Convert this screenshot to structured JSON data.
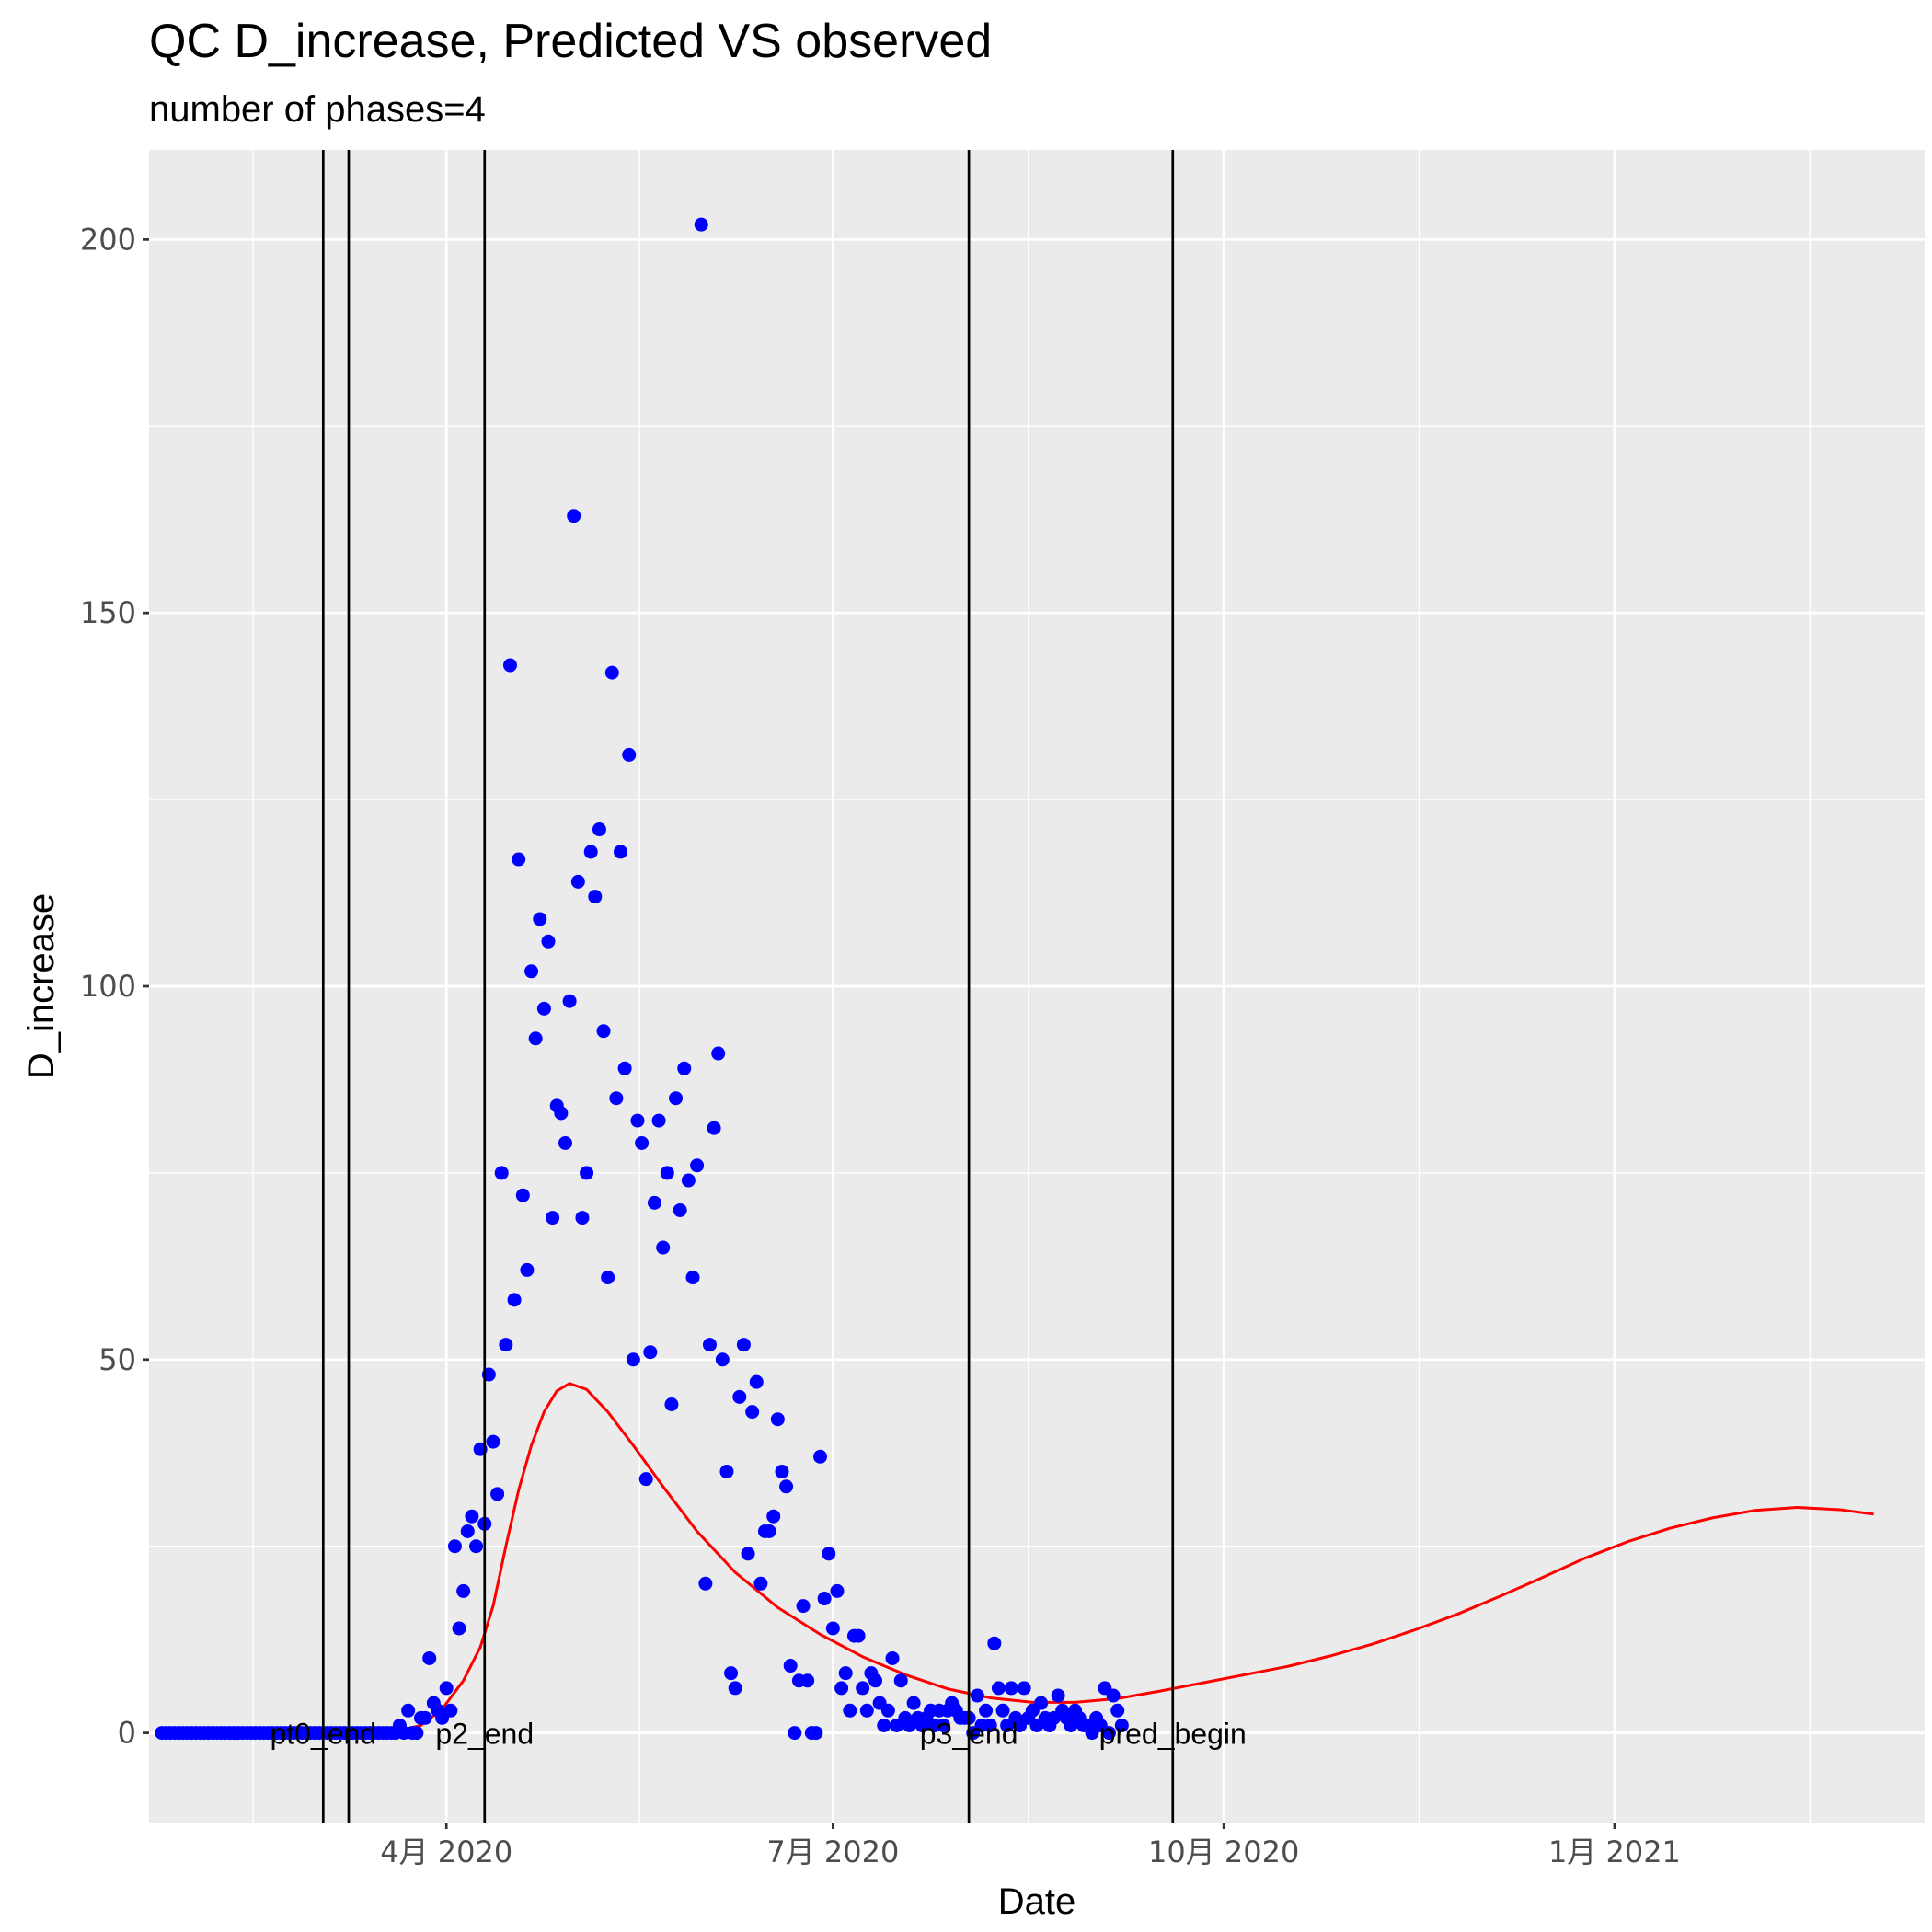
{
  "chart_data": {
    "type": "scatter",
    "title": "QC D_increase, Predicted VS observed",
    "subtitle": "number of phases=4",
    "xlabel": "Date",
    "ylabel": "D_increase",
    "x_type": "date",
    "xlim": [
      "2020-01-22",
      "2021-03-15"
    ],
    "ylim": [
      -12,
      212
    ],
    "x_ticks": [
      {
        "date": "2020-04-01",
        "label": "4月 2020"
      },
      {
        "date": "2020-07-01",
        "label": "7月 2020"
      },
      {
        "date": "2020-10-01",
        "label": "10月 2020"
      },
      {
        "date": "2021-01-01",
        "label": "1月 2021"
      }
    ],
    "y_ticks": [
      0,
      50,
      100,
      150,
      200
    ],
    "grid": true,
    "colors": {
      "panel": "#ebebeb",
      "grid": "#ffffff",
      "observed": "#0000ff",
      "predicted": "#ff0000",
      "vline": "#000000"
    },
    "vlines": [
      {
        "date": "2020-03-03",
        "label": "pt0_end"
      },
      {
        "date": "2020-03-09",
        "label": ""
      },
      {
        "date": "2020-04-10",
        "label": "p2_end"
      },
      {
        "date": "2020-08-02",
        "label": "p3_end"
      },
      {
        "date": "2020-09-19",
        "label": "pred_begin"
      }
    ],
    "series": [
      {
        "kind": "points",
        "x_start": "2020-01-25",
        "y": [
          0,
          0,
          0,
          0,
          0,
          0,
          0,
          0,
          0,
          0,
          0,
          0,
          0,
          0,
          0,
          0,
          0,
          0,
          0,
          0,
          0,
          0,
          0,
          0,
          0,
          0,
          0,
          0,
          0,
          0,
          0,
          0,
          0,
          0,
          0,
          0,
          0,
          0,
          0,
          0,
          0,
          0,
          0,
          0,
          0,
          0,
          0,
          0,
          0,
          0,
          0,
          0,
          0,
          0,
          0,
          0,
          1,
          0,
          3,
          0,
          0,
          2,
          2,
          10,
          4,
          3,
          2,
          6,
          3,
          25,
          14,
          19,
          27,
          29,
          25,
          38,
          28,
          48,
          39,
          32,
          75,
          52,
          143,
          58,
          117,
          72,
          62,
          102,
          93,
          109,
          97,
          106,
          69,
          84,
          83,
          79,
          98,
          163,
          114,
          69,
          75,
          118,
          112,
          121,
          94,
          61,
          142,
          85,
          118,
          89,
          131,
          50,
          82,
          79,
          34,
          51,
          71,
          82,
          65,
          75,
          44,
          85,
          70,
          89,
          74,
          61,
          76,
          202,
          20,
          52,
          81,
          91,
          50,
          35,
          8,
          6,
          45,
          52,
          24,
          43,
          47,
          20,
          27,
          27,
          29,
          42,
          35,
          33,
          9,
          0,
          7,
          17,
          7,
          0,
          0,
          37,
          18,
          24,
          14,
          19,
          6,
          8,
          3,
          13,
          13,
          6,
          3,
          8,
          7,
          4,
          1,
          3,
          10,
          1,
          7,
          2,
          1,
          4,
          2,
          1,
          2,
          3,
          1,
          3,
          1,
          3,
          4,
          3,
          2,
          2,
          2,
          0,
          5,
          1,
          3,
          1,
          12,
          6,
          3,
          1,
          6,
          2,
          1,
          6,
          2,
          3,
          1,
          4,
          2,
          1,
          2,
          5,
          3,
          2,
          1,
          3,
          2,
          1,
          1,
          0,
          2,
          1,
          6,
          0,
          5,
          3,
          1
        ]
      },
      {
        "kind": "line",
        "points": [
          [
            "2020-03-20",
            0.2
          ],
          [
            "2020-03-26",
            1.0
          ],
          [
            "2020-03-31",
            3.2
          ],
          [
            "2020-04-05",
            7.0
          ],
          [
            "2020-04-09",
            11.5
          ],
          [
            "2020-04-12",
            17.0
          ],
          [
            "2020-04-15",
            25.0
          ],
          [
            "2020-04-18",
            32.5
          ],
          [
            "2020-04-21",
            38.5
          ],
          [
            "2020-04-24",
            43.0
          ],
          [
            "2020-04-27",
            45.8
          ],
          [
            "2020-04-30",
            46.8
          ],
          [
            "2020-05-04",
            46.0
          ],
          [
            "2020-05-09",
            43.0
          ],
          [
            "2020-05-15",
            38.5
          ],
          [
            "2020-05-22",
            33.0
          ],
          [
            "2020-05-30",
            27.0
          ],
          [
            "2020-06-08",
            21.5
          ],
          [
            "2020-06-18",
            16.8
          ],
          [
            "2020-06-28",
            13.2
          ],
          [
            "2020-07-08",
            10.2
          ],
          [
            "2020-07-18",
            7.8
          ],
          [
            "2020-07-28",
            5.9
          ],
          [
            "2020-08-07",
            4.7
          ],
          [
            "2020-08-17",
            4.1
          ],
          [
            "2020-08-27",
            4.1
          ],
          [
            "2020-09-06",
            4.6
          ],
          [
            "2020-09-16",
            5.6
          ],
          [
            "2020-09-26",
            6.7
          ],
          [
            "2020-10-06",
            7.8
          ],
          [
            "2020-10-16",
            8.9
          ],
          [
            "2020-10-26",
            10.3
          ],
          [
            "2020-11-05",
            11.9
          ],
          [
            "2020-11-15",
            13.8
          ],
          [
            "2020-11-25",
            15.9
          ],
          [
            "2020-12-05",
            18.3
          ],
          [
            "2020-12-15",
            20.8
          ],
          [
            "2020-12-25",
            23.4
          ],
          [
            "2021-01-04",
            25.6
          ],
          [
            "2021-01-14",
            27.4
          ],
          [
            "2021-01-24",
            28.8
          ],
          [
            "2021-02-03",
            29.8
          ],
          [
            "2021-02-13",
            30.2
          ],
          [
            "2021-02-23",
            29.9
          ],
          [
            "2021-03-03",
            29.3
          ]
        ]
      }
    ]
  }
}
